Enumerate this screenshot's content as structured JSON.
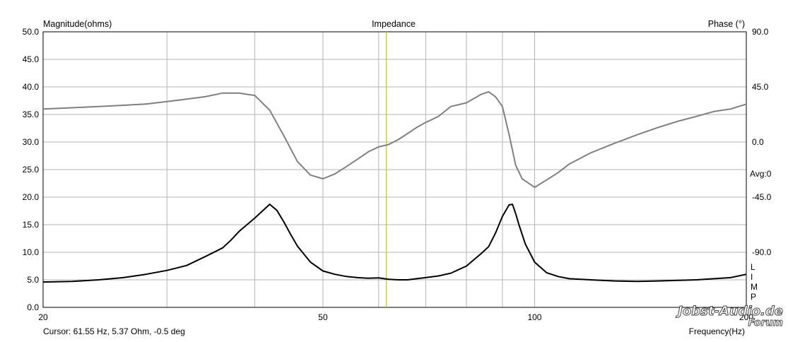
{
  "chart_data": {
    "type": "line",
    "title": "Impedance",
    "xlabel": "Frequency(Hz)",
    "ylabel": "Magnitude(ohms)",
    "y2label": "Phase (°)",
    "x_scale": "log",
    "xlim": [
      20,
      200
    ],
    "ylim": [
      0,
      50
    ],
    "y2lim": [
      -135,
      90
    ],
    "x_ticks": [
      20,
      50,
      100,
      200
    ],
    "x_tick_labels": [
      "20",
      "50",
      "100",
      "200"
    ],
    "y_ticks": [
      "50.0",
      "45.0",
      "40.0",
      "35.0",
      "30.0",
      "25.0",
      "20.0",
      "15.0",
      "10.0",
      "5.0",
      "0.0"
    ],
    "y2_ticks": [
      "90.0",
      "45.0",
      "0.0",
      "-45.0",
      "-90.0"
    ],
    "avg_label": "Avg:0",
    "grid": true,
    "cursor_hz": 61.55,
    "cursor_text": "Cursor: 61.55 Hz, 5.37 Ohm, -0.5 deg",
    "side_letters": [
      "L",
      "I",
      "M",
      "P"
    ],
    "series": [
      {
        "name": "Magnitude",
        "color": "#000000",
        "axis": "left",
        "x": [
          20,
          22,
          24,
          26,
          28,
          30,
          32,
          34,
          36,
          37,
          38,
          40,
          42,
          43,
          44,
          45,
          46,
          48,
          50,
          52,
          54,
          56,
          58,
          60,
          62,
          64,
          66,
          68,
          70,
          73,
          76,
          80,
          84,
          86,
          88,
          90,
          92,
          93,
          94,
          95,
          97,
          100,
          104,
          108,
          112,
          120,
          130,
          140,
          150,
          160,
          170,
          180,
          190,
          200
        ],
        "values": [
          4.6,
          4.7,
          5.0,
          5.4,
          6.0,
          6.7,
          7.6,
          9.2,
          10.8,
          12.2,
          13.8,
          16.2,
          18.7,
          17.6,
          15.5,
          13.2,
          11.1,
          8.2,
          6.6,
          6.0,
          5.6,
          5.4,
          5.3,
          5.35,
          5.1,
          5.0,
          5.0,
          5.2,
          5.4,
          5.7,
          6.2,
          7.5,
          9.8,
          11.0,
          13.5,
          16.5,
          18.6,
          18.7,
          17.0,
          15.0,
          11.5,
          8.2,
          6.3,
          5.6,
          5.2,
          5.0,
          4.8,
          4.7,
          4.8,
          4.9,
          5.0,
          5.2,
          5.4,
          6.0
        ]
      },
      {
        "name": "Phase",
        "color": "#808080",
        "axis": "right",
        "x": [
          20,
          22,
          24,
          26,
          28,
          30,
          32,
          34,
          36,
          38,
          40,
          42,
          44,
          46,
          48,
          50,
          52,
          54,
          56,
          58,
          60,
          62,
          64,
          66,
          68,
          70,
          73,
          76,
          80,
          84,
          86,
          88,
          90,
          92,
          94,
          96,
          100,
          104,
          108,
          112,
          120,
          130,
          140,
          150,
          160,
          170,
          180,
          190,
          200
        ],
        "values": [
          27,
          28,
          29,
          30,
          31,
          33,
          35,
          37,
          40,
          40,
          38,
          26,
          5,
          -16,
          -27,
          -30,
          -26,
          -20,
          -14,
          -8,
          -4,
          -2,
          2,
          7,
          12,
          16,
          21,
          29,
          32,
          39,
          41,
          37,
          29,
          6,
          -19,
          -30,
          -37,
          -31,
          -25,
          -18,
          -9,
          -1,
          6,
          12,
          17,
          21,
          25,
          27,
          31
        ]
      }
    ]
  },
  "watermark": {
    "line1": "Jobst-Audio.de",
    "line2": "Forum"
  },
  "colors": {
    "cursor_line": "#c8c800",
    "magnitude": "#000000",
    "phase": "#808080",
    "grid": "#b4b4b4"
  }
}
